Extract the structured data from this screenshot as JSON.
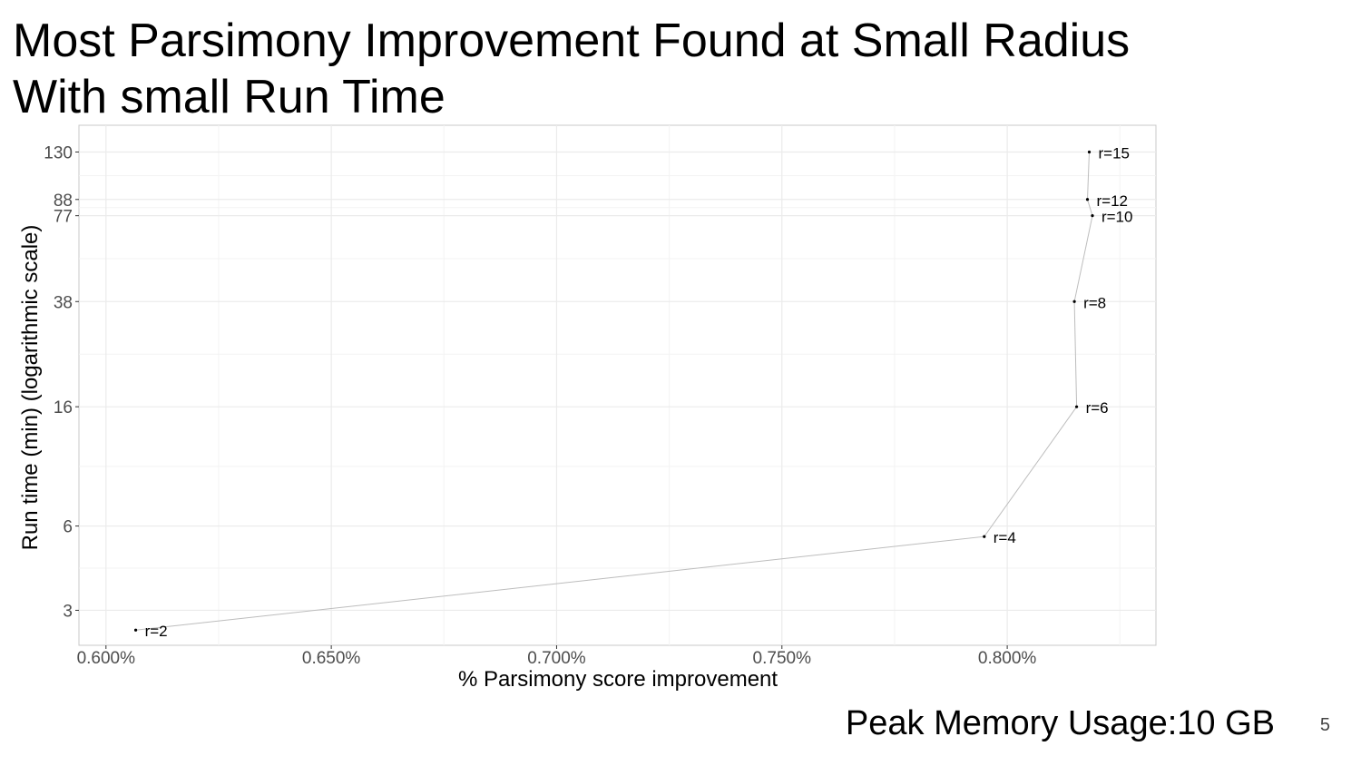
{
  "slide": {
    "title_line1": "Most Parsimony Improvement Found at Small Radius",
    "title_line2": "With small Run Time",
    "memory_text": "Peak Memory Usage:10 GB",
    "page_number": "5"
  },
  "chart_data": {
    "type": "line",
    "xlabel": "% Parsimony score improvement",
    "ylabel": "Run time (min) (logarithmic scale)",
    "x_scale": "linear",
    "y_scale": "log",
    "xlim": [
      0.594,
      0.833
    ],
    "ylim": [
      2.25,
      162
    ],
    "x_ticks": [
      0.6,
      0.65,
      0.7,
      0.75,
      0.8
    ],
    "x_tick_labels": [
      "0.600%",
      "0.650%",
      "0.700%",
      "0.750%",
      "0.800%"
    ],
    "y_ticks": [
      3,
      6,
      16,
      38,
      77,
      88,
      130
    ],
    "y_tick_labels": [
      "3",
      "6",
      "16",
      "38",
      "77",
      "88",
      "130"
    ],
    "grid": true,
    "points": [
      {
        "x": 0.6066,
        "y": 2.55,
        "label": "r=2"
      },
      {
        "x": 0.7949,
        "y": 5.5,
        "label": "r=4"
      },
      {
        "x": 0.8154,
        "y": 16,
        "label": "r=6"
      },
      {
        "x": 0.8149,
        "y": 38,
        "label": "r=8"
      },
      {
        "x": 0.8189,
        "y": 77,
        "label": "r=10"
      },
      {
        "x": 0.8178,
        "y": 88,
        "label": "r=12"
      },
      {
        "x": 0.8182,
        "y": 130,
        "label": "r=15"
      }
    ],
    "colors": {
      "line": "#bdbdbd",
      "point": "#000000",
      "grid": "#ebebeb",
      "panel_border": "#c8c8c8",
      "tick_label": "#4d4d4d"
    }
  }
}
